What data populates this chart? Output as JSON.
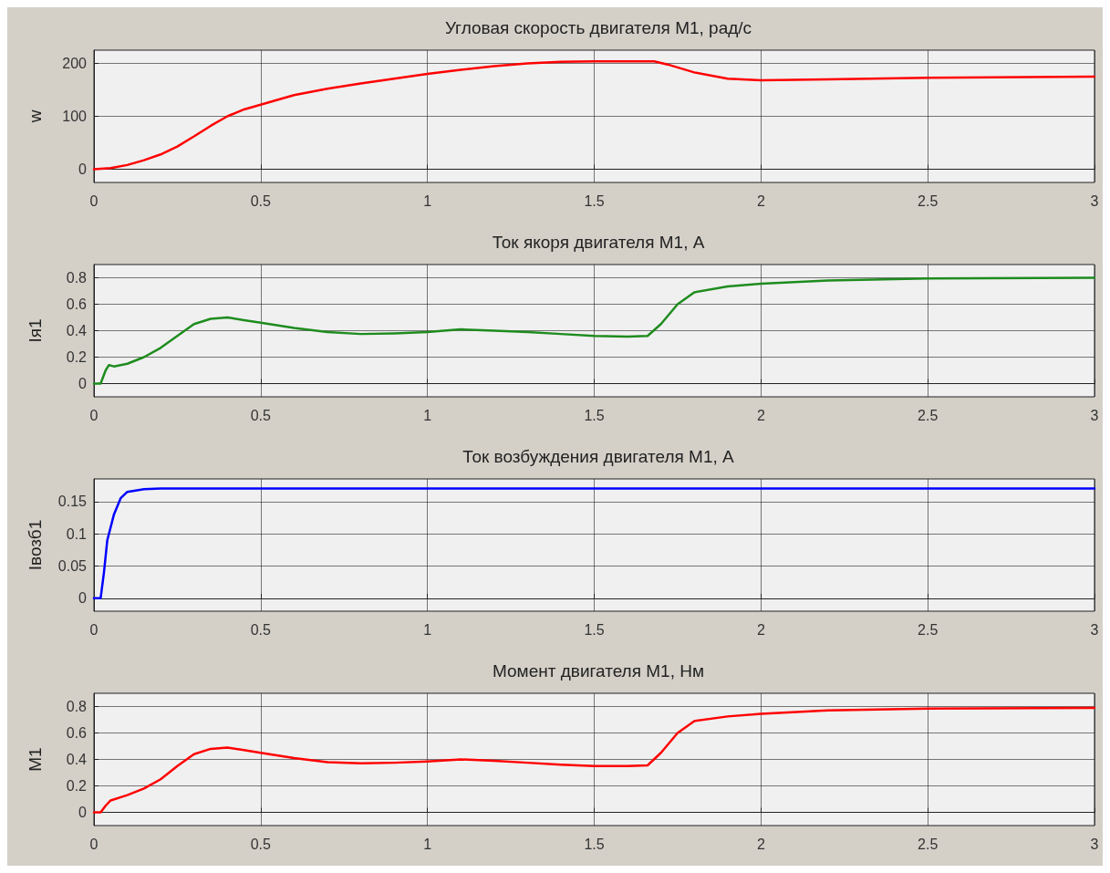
{
  "chart_data": [
    {
      "type": "line",
      "title": "Угловая скорость двигателя М1, рад/с",
      "ylabel": "w",
      "xlim": [
        0,
        3
      ],
      "xticks": [
        0,
        0.5,
        1,
        1.5,
        2,
        2.5,
        3
      ],
      "ylim": [
        -25,
        225
      ],
      "yticks": [
        0,
        100,
        200
      ],
      "grid": true,
      "line_style": "solid",
      "marker": "none",
      "x": [
        0,
        0.05,
        0.1,
        0.15,
        0.2,
        0.25,
        0.3,
        0.35,
        0.4,
        0.45,
        0.5,
        0.6,
        0.7,
        0.8,
        0.9,
        1,
        1.1,
        1.2,
        1.3,
        1.4,
        1.5,
        1.6,
        1.68,
        1.72,
        1.8,
        1.9,
        2,
        2.2,
        2.5,
        3
      ],
      "series": [
        {
          "color": "#ff0000",
          "values": [
            0,
            2,
            8,
            17,
            28,
            43,
            62,
            82,
            100,
            113,
            122,
            140,
            152,
            162,
            171,
            180,
            188,
            195,
            200,
            203,
            204,
            204,
            204,
            198,
            183,
            171,
            168,
            170,
            173,
            175
          ]
        }
      ]
    },
    {
      "type": "line",
      "title": "Ток якоря двигателя М1, А",
      "ylabel": "Iя1",
      "xlim": [
        0,
        3
      ],
      "xticks": [
        0,
        0.5,
        1,
        1.5,
        2,
        2.5,
        3
      ],
      "ylim": [
        -0.1,
        0.9
      ],
      "yticks": [
        0,
        0.2,
        0.4,
        0.6,
        0.8
      ],
      "grid": true,
      "line_style": "solid",
      "marker": "none",
      "x": [
        0,
        0.02,
        0.035,
        0.045,
        0.06,
        0.1,
        0.15,
        0.2,
        0.25,
        0.3,
        0.35,
        0.4,
        0.45,
        0.5,
        0.6,
        0.7,
        0.8,
        0.9,
        1,
        1.1,
        1.2,
        1.3,
        1.4,
        1.5,
        1.6,
        1.66,
        1.7,
        1.75,
        1.8,
        1.9,
        2,
        2.2,
        2.5,
        3
      ],
      "series": [
        {
          "color": "#1e8c1e",
          "values": [
            0,
            0,
            0.1,
            0.14,
            0.13,
            0.15,
            0.2,
            0.27,
            0.36,
            0.45,
            0.49,
            0.5,
            0.48,
            0.46,
            0.42,
            0.39,
            0.375,
            0.38,
            0.39,
            0.41,
            0.4,
            0.39,
            0.375,
            0.36,
            0.355,
            0.36,
            0.45,
            0.6,
            0.69,
            0.735,
            0.755,
            0.78,
            0.795,
            0.8
          ]
        }
      ]
    },
    {
      "type": "line",
      "title": "Ток возбуждения двигателя М1, А",
      "ylabel": "Iвозб1",
      "xlim": [
        0,
        3
      ],
      "xticks": [
        0,
        0.5,
        1,
        1.5,
        2,
        2.5,
        3
      ],
      "ylim": [
        -0.02,
        0.185
      ],
      "yticks": [
        0,
        0.05,
        0.1,
        0.15
      ],
      "grid": true,
      "line_style": "solid",
      "marker": "none",
      "x": [
        0,
        0.02,
        0.03,
        0.04,
        0.06,
        0.08,
        0.1,
        0.15,
        0.2,
        3
      ],
      "series": [
        {
          "color": "#0000ff",
          "values": [
            0,
            0,
            0.04,
            0.09,
            0.13,
            0.155,
            0.165,
            0.169,
            0.17,
            0.17
          ]
        }
      ]
    },
    {
      "type": "line",
      "title": "Момент двигателя М1, Нм",
      "ylabel": "M1",
      "xlim": [
        0,
        3
      ],
      "xticks": [
        0,
        0.5,
        1,
        1.5,
        2,
        2.5,
        3
      ],
      "ylim": [
        -0.1,
        0.9
      ],
      "yticks": [
        0,
        0.2,
        0.4,
        0.6,
        0.8
      ],
      "grid": true,
      "line_style": "solid",
      "marker": "none",
      "x": [
        0,
        0.02,
        0.035,
        0.05,
        0.1,
        0.15,
        0.2,
        0.25,
        0.3,
        0.35,
        0.4,
        0.45,
        0.5,
        0.6,
        0.7,
        0.8,
        0.9,
        1,
        1.1,
        1.2,
        1.3,
        1.4,
        1.5,
        1.6,
        1.66,
        1.7,
        1.75,
        1.8,
        1.9,
        2,
        2.2,
        2.5,
        3
      ],
      "series": [
        {
          "color": "#ff0000",
          "values": [
            0,
            0,
            0.05,
            0.09,
            0.13,
            0.18,
            0.25,
            0.35,
            0.44,
            0.48,
            0.49,
            0.47,
            0.45,
            0.41,
            0.38,
            0.37,
            0.375,
            0.385,
            0.4,
            0.39,
            0.375,
            0.36,
            0.35,
            0.35,
            0.355,
            0.45,
            0.6,
            0.69,
            0.725,
            0.745,
            0.77,
            0.785,
            0.79
          ]
        }
      ]
    }
  ]
}
